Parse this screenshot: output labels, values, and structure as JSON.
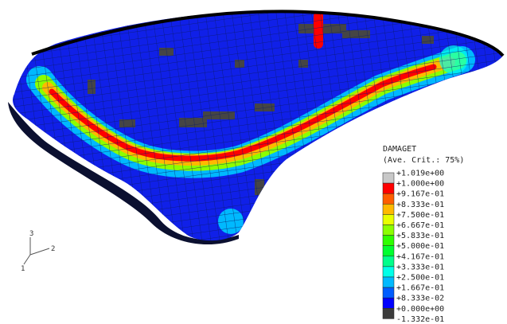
{
  "legend": {
    "title": "DAMAGET",
    "subtitle": "(Ave. Crit.: 75%)",
    "labels": [
      "+1.019e+00",
      "+1.000e+00",
      "+9.167e-01",
      "+8.333e-01",
      "+7.500e-01",
      "+6.667e-01",
      "+5.833e-01",
      "+5.000e-01",
      "+4.167e-01",
      "+3.333e-01",
      "+2.500e-01",
      "+1.667e-01",
      "+8.333e-02",
      "+0.000e+00",
      "-1.332e-01"
    ],
    "colors": [
      "#c8c8c8",
      "#ff0000",
      "#ff5d00",
      "#ffb900",
      "#e8ff00",
      "#8bff00",
      "#2eff00",
      "#00ff2e",
      "#00ff8b",
      "#00ffe8",
      "#00b9ff",
      "#005dff",
      "#0000ff",
      "#3c3c3c"
    ]
  },
  "triad": {
    "axes": [
      "3",
      "2",
      "1"
    ]
  }
}
